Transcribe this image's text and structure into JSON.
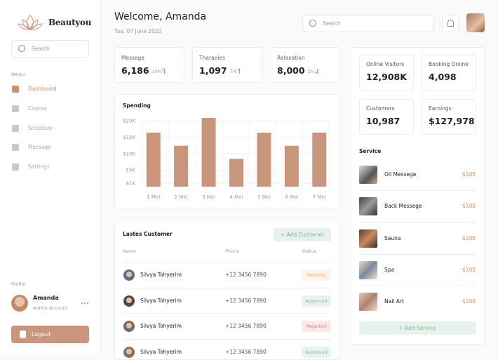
{
  "sidebar": {
    "brand": "Beautyou",
    "search_placeholder": "Search",
    "menu_label": "Menu",
    "menu": [
      "Dashboard",
      "Course",
      "Schedule",
      "Message",
      "Settings"
    ],
    "profile_label": "Profile",
    "profile": {
      "name": "Amanda",
      "role": "Admin Account"
    },
    "logout": "Logout"
  },
  "header": {
    "title": "Welcome, Amanda",
    "date": "Tue, 07 June 2022",
    "search_placeholder": "Search"
  },
  "stats": [
    {
      "label": "Messege",
      "value": "6,186",
      "change": "10%"
    },
    {
      "label": "Therapies",
      "value": "1,097",
      "change": "7%"
    },
    {
      "label": "Relaxation",
      "value": "8,000",
      "change": "2%"
    }
  ],
  "chart_data": {
    "type": "bar",
    "title": "Spending",
    "categories": [
      "1 Mei",
      "2 Mei",
      "3 Mei",
      "4 Mei",
      "5 Mei",
      "6 Mei",
      "7 Mei"
    ],
    "values": [
      16.5,
      12.5,
      21,
      8.5,
      16.5,
      12.5,
      16.5
    ],
    "color": "#c9967c",
    "ylim": [
      0,
      21
    ],
    "yticks": [
      {
        "value": 20,
        "label": "$20K"
      },
      {
        "value": 15,
        "label": "$15K"
      },
      {
        "value": 10,
        "label": "$10K"
      },
      {
        "value": 5,
        "label": "$5K"
      },
      {
        "value": 1,
        "label": "$1K"
      }
    ],
    "grid": true
  },
  "customers": {
    "title": "Lastes Customer",
    "button": "+ Add Customer",
    "columns": [
      "Name",
      "Phone",
      "Status"
    ],
    "rows": [
      [
        "Silvya Tohyerim",
        "+12 3456 7890",
        "Pending"
      ],
      [
        "Silvya Tohyerim",
        "+12 3456 7890",
        "Approved"
      ],
      [
        "Silvya Tohyerim",
        "+12 3456 7890",
        "Rejected"
      ],
      [
        "Silvya Tohyerim",
        "+12 3456 7890",
        "Approved"
      ]
    ]
  },
  "kpis": [
    {
      "label": "Online Visitors",
      "value": "12,908K"
    },
    {
      "label": "Booking Online",
      "value": "4,098"
    },
    {
      "label": "Customers",
      "value": "10,987"
    },
    {
      "label": "Earnings",
      "value": "$127,978"
    }
  ],
  "services": {
    "title": "Service",
    "items": [
      {
        "name": "Oil Messege",
        "price": "$105"
      },
      {
        "name": "Back Messege",
        "price": "$105"
      },
      {
        "name": "Sauna",
        "price": "$105"
      },
      {
        "name": "Spa",
        "price": "$105"
      },
      {
        "name": "Nail Art",
        "price": "$105"
      }
    ],
    "button": "+ Add Service"
  }
}
